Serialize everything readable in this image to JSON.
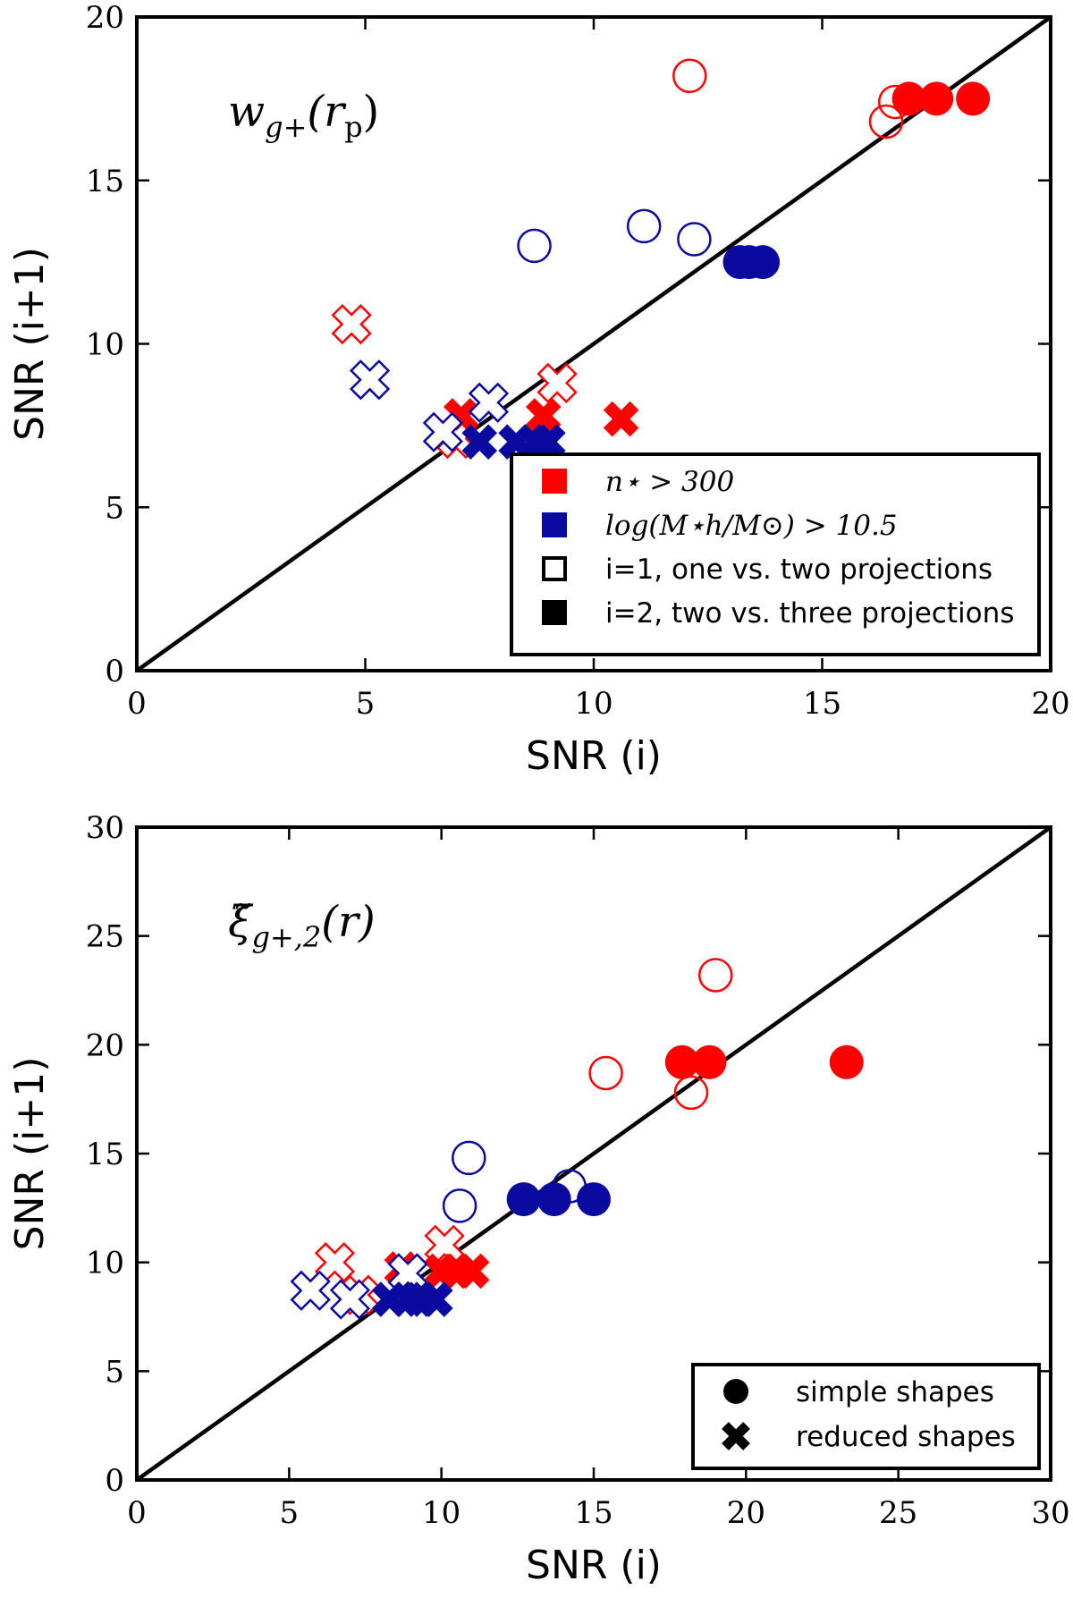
{
  "colors": {
    "red": "#ff0000",
    "blue": "#0a0aa0",
    "black": "#000000"
  },
  "chart_data": [
    {
      "type": "scatter",
      "title": "w_{g+}(r_p)",
      "title_main": "w",
      "title_sub": "g+",
      "title_arg": "(r",
      "title_arg_sub": "p",
      "title_close": ")",
      "xlabel": "SNR (i)",
      "ylabel": "SNR (i+1)",
      "xlim": [
        0,
        20
      ],
      "ylim": [
        0,
        20
      ],
      "xticks": [
        0,
        5,
        10,
        15,
        20
      ],
      "yticks": [
        0,
        5,
        10,
        15,
        20
      ],
      "diagonal": true,
      "legend": {
        "position": "lower-right",
        "entries": [
          {
            "label": "n⋆ > 300",
            "swatch": "square",
            "color": "red",
            "math": true
          },
          {
            "label": "log(M⋆h/M⊙) > 10.5",
            "swatch": "square",
            "color": "blue",
            "math": true
          },
          {
            "label": "i=1, one vs. two projections",
            "swatch": "open-square",
            "color": "black",
            "math": false
          },
          {
            "label": "i=2, two vs. three projections",
            "swatch": "square",
            "color": "black",
            "math": false
          }
        ]
      },
      "series": [
        {
          "name": "red open circles (i=1, simple)",
          "color": "red",
          "marker": "circle",
          "fill": false,
          "points": [
            [
              12.1,
              18.2
            ],
            [
              16.6,
              17.4
            ],
            [
              16.4,
              16.8
            ]
          ]
        },
        {
          "name": "red filled circles (i=2, simple)",
          "color": "red",
          "marker": "circle",
          "fill": true,
          "points": [
            [
              16.9,
              17.5
            ],
            [
              17.5,
              17.5
            ],
            [
              18.3,
              17.5
            ]
          ]
        },
        {
          "name": "blue open circles (i=1, simple)",
          "color": "blue",
          "marker": "circle",
          "fill": false,
          "points": [
            [
              8.7,
              13.0
            ],
            [
              11.1,
              13.6
            ],
            [
              12.2,
              13.2
            ]
          ]
        },
        {
          "name": "blue filled circles (i=2, simple)",
          "color": "blue",
          "marker": "circle",
          "fill": true,
          "points": [
            [
              13.2,
              12.5
            ],
            [
              13.4,
              12.5
            ],
            [
              13.7,
              12.5
            ]
          ]
        },
        {
          "name": "red open crosses (i=1, reduced)",
          "color": "red",
          "marker": "cross",
          "fill": false,
          "points": [
            [
              4.7,
              10.6
            ],
            [
              9.2,
              8.8
            ],
            [
              7.0,
              7.1
            ]
          ]
        },
        {
          "name": "red filled crosses (i=2, reduced)",
          "color": "red",
          "marker": "cross",
          "fill": true,
          "points": [
            [
              7.1,
              7.8
            ],
            [
              8.9,
              7.8
            ],
            [
              10.6,
              7.7
            ]
          ]
        },
        {
          "name": "blue open crosses (i=1, reduced)",
          "color": "blue",
          "marker": "cross",
          "fill": false,
          "points": [
            [
              5.1,
              8.9
            ],
            [
              7.7,
              8.2
            ],
            [
              6.7,
              7.3
            ]
          ]
        },
        {
          "name": "blue filled crosses (i=2, reduced)",
          "color": "blue",
          "marker": "cross",
          "fill": true,
          "points": [
            [
              7.5,
              7.0
            ],
            [
              8.3,
              7.0
            ],
            [
              8.7,
              7.0
            ],
            [
              9.0,
              7.0
            ]
          ]
        }
      ]
    },
    {
      "type": "scatter",
      "title": "ξ̃_{g+,2}(r)",
      "title_main": "ξ̃",
      "title_sub": "g+,2",
      "title_arg": "(r)",
      "xlabel": "SNR (i)",
      "ylabel": "SNR (i+1)",
      "xlim": [
        0,
        30
      ],
      "ylim": [
        0,
        30
      ],
      "xticks": [
        0,
        5,
        10,
        15,
        20,
        25,
        30
      ],
      "yticks": [
        0,
        5,
        10,
        15,
        20,
        25,
        30
      ],
      "diagonal": true,
      "legend": {
        "position": "lower-right",
        "entries": [
          {
            "label": "simple shapes",
            "swatch": "circle",
            "color": "black",
            "math": false
          },
          {
            "label": "reduced shapes",
            "swatch": "cross",
            "color": "black",
            "math": false
          }
        ]
      },
      "series": [
        {
          "name": "red open circles (i=1, simple)",
          "color": "red",
          "marker": "circle",
          "fill": false,
          "points": [
            [
              19.0,
              23.2
            ],
            [
              15.4,
              18.7
            ],
            [
              18.2,
              17.8
            ]
          ]
        },
        {
          "name": "red filled circles (i=2, simple)",
          "color": "red",
          "marker": "circle",
          "fill": true,
          "points": [
            [
              17.9,
              19.2
            ],
            [
              18.8,
              19.2
            ],
            [
              23.3,
              19.2
            ]
          ]
        },
        {
          "name": "blue open circles (i=1, simple)",
          "color": "blue",
          "marker": "circle",
          "fill": false,
          "points": [
            [
              10.9,
              14.8
            ],
            [
              10.6,
              12.6
            ],
            [
              14.2,
              13.5
            ]
          ]
        },
        {
          "name": "blue filled circles (i=2, simple)",
          "color": "blue",
          "marker": "circle",
          "fill": true,
          "points": [
            [
              12.7,
              12.9
            ],
            [
              13.7,
              12.9
            ],
            [
              15.0,
              12.9
            ]
          ]
        },
        {
          "name": "red open crosses (i=1, reduced)",
          "color": "red",
          "marker": "cross",
          "fill": false,
          "points": [
            [
              6.5,
              10.0
            ],
            [
              10.1,
              10.8
            ],
            [
              7.3,
              8.5
            ]
          ]
        },
        {
          "name": "red filled crosses (i=2, reduced)",
          "color": "red",
          "marker": "cross",
          "fill": true,
          "points": [
            [
              8.7,
              9.7
            ],
            [
              10.0,
              9.6
            ],
            [
              10.5,
              9.6
            ],
            [
              11.0,
              9.6
            ]
          ]
        },
        {
          "name": "blue open crosses (i=1, reduced)",
          "color": "blue",
          "marker": "cross",
          "fill": false,
          "points": [
            [
              5.7,
              8.7
            ],
            [
              7.0,
              8.3
            ],
            [
              8.9,
              9.5
            ]
          ]
        },
        {
          "name": "blue filled crosses (i=2, reduced)",
          "color": "blue",
          "marker": "cross",
          "fill": true,
          "points": [
            [
              8.3,
              8.3
            ],
            [
              8.9,
              8.3
            ],
            [
              9.3,
              8.3
            ],
            [
              9.8,
              8.3
            ]
          ]
        }
      ]
    }
  ]
}
